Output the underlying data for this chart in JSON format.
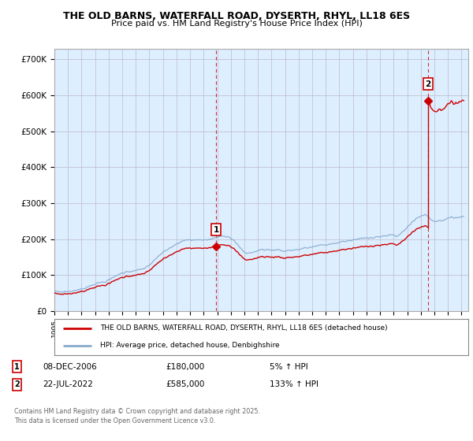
{
  "title": "THE OLD BARNS, WATERFALL ROAD, DYSERTH, RHYL, LL18 6ES",
  "subtitle": "Price paid vs. HM Land Registry's House Price Index (HPI)",
  "xlim_start": 1995.0,
  "xlim_end": 2025.5,
  "ylim": [
    0,
    730000
  ],
  "yticks": [
    0,
    100000,
    200000,
    300000,
    400000,
    500000,
    600000,
    700000
  ],
  "ytick_labels": [
    "£0",
    "£100K",
    "£200K",
    "£300K",
    "£400K",
    "£500K",
    "£600K",
    "£700K"
  ],
  "transaction1": {
    "date_x": 2006.92,
    "price": 180000,
    "label": "1"
  },
  "transaction2": {
    "date_x": 2022.54,
    "price": 585000,
    "label": "2"
  },
  "annotation1": {
    "date": "08-DEC-2006",
    "price": "£180,000",
    "change": "5% ↑ HPI"
  },
  "annotation2": {
    "date": "22-JUL-2022",
    "price": "£585,000",
    "change": "133% ↑ HPI"
  },
  "legend_line1": "THE OLD BARNS, WATERFALL ROAD, DYSERTH, RHYL, LL18 6ES (detached house)",
  "legend_line2": "HPI: Average price, detached house, Denbighshire",
  "line1_color": "#cc0000",
  "line2_color": "#88aacc",
  "fill_color": "#ddeeff",
  "background_color": "#ffffff",
  "grid_color": "#cccccc",
  "copyright": "Contains HM Land Registry data © Crown copyright and database right 2025.\nThis data is licensed under the Open Government Licence v3.0."
}
